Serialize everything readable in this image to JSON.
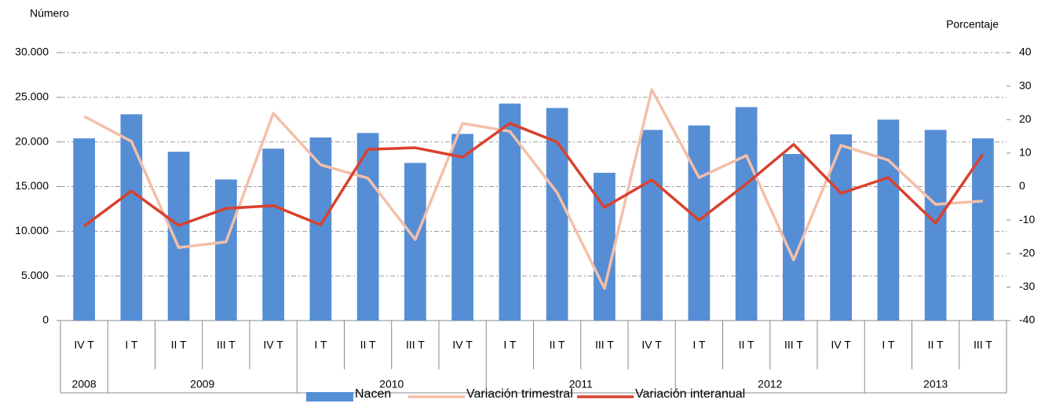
{
  "chart_data": {
    "type": "bar-line",
    "ylabel": "Número",
    "y2label": "Porcentaje",
    "categories": [
      "IV T",
      "I T",
      "II T",
      "III T",
      "IV T",
      "I T",
      "II T",
      "III T",
      "IV T",
      "I T",
      "II T",
      "III T",
      "IV T",
      "I T",
      "II T",
      "III T",
      "IV T",
      "I T",
      "II T",
      "III T"
    ],
    "groups": [
      {
        "label": "2008",
        "span": 1
      },
      {
        "label": "2009",
        "span": 4
      },
      {
        "label": "2010",
        "span": 4
      },
      {
        "label": "2011",
        "span": 4
      },
      {
        "label": "2012",
        "span": 4
      },
      {
        "label": "2013",
        "span": 3
      }
    ],
    "series": [
      {
        "name": "Nacen",
        "type": "bar",
        "color": "#558ed5",
        "values": [
          20400,
          23100,
          18900,
          15800,
          19250,
          20500,
          21000,
          17650,
          20900,
          24300,
          23800,
          16550,
          21350,
          21850,
          23900,
          18650,
          20850,
          22500,
          21350,
          20400
        ]
      },
      {
        "name": "Variación trimestral",
        "type": "line",
        "axis": "y2",
        "color": "#f4bfa8",
        "values": [
          21.0,
          13.5,
          -18.2,
          -16.5,
          21.9,
          6.5,
          2.5,
          -15.8,
          18.9,
          16.5,
          -1.8,
          -30.4,
          29.0,
          2.7,
          9.3,
          -21.9,
          12.3,
          7.9,
          -5.3,
          -4.3
        ]
      },
      {
        "name": "Variación interanual",
        "type": "line",
        "axis": "y2",
        "color": "#d9412e",
        "values": [
          -11.8,
          -1.3,
          -11.6,
          -6.5,
          -5.7,
          -11.4,
          11.1,
          11.6,
          8.8,
          18.9,
          13.3,
          -6.2,
          2.0,
          -10.0,
          0.8,
          12.6,
          -2.0,
          2.7,
          -10.9,
          9.7
        ]
      }
    ],
    "ylim": [
      0,
      30000
    ],
    "yticks": [
      0,
      {
        "value": 5000,
        "label": "5.000"
      },
      {
        "value": 10000,
        "label": "10.000"
      },
      {
        "value": 15000,
        "label": "15.000"
      },
      {
        "value": 20000,
        "label": "20.000"
      },
      {
        "value": 25000,
        "label": "25.000"
      },
      {
        "value": 30000,
        "label": "30.000"
      }
    ],
    "y2lim": [
      -40,
      40
    ],
    "y2ticks": [
      -40,
      -30,
      -20,
      -10,
      0,
      10,
      20,
      30,
      40
    ],
    "grid": true,
    "legend": "bottom"
  }
}
